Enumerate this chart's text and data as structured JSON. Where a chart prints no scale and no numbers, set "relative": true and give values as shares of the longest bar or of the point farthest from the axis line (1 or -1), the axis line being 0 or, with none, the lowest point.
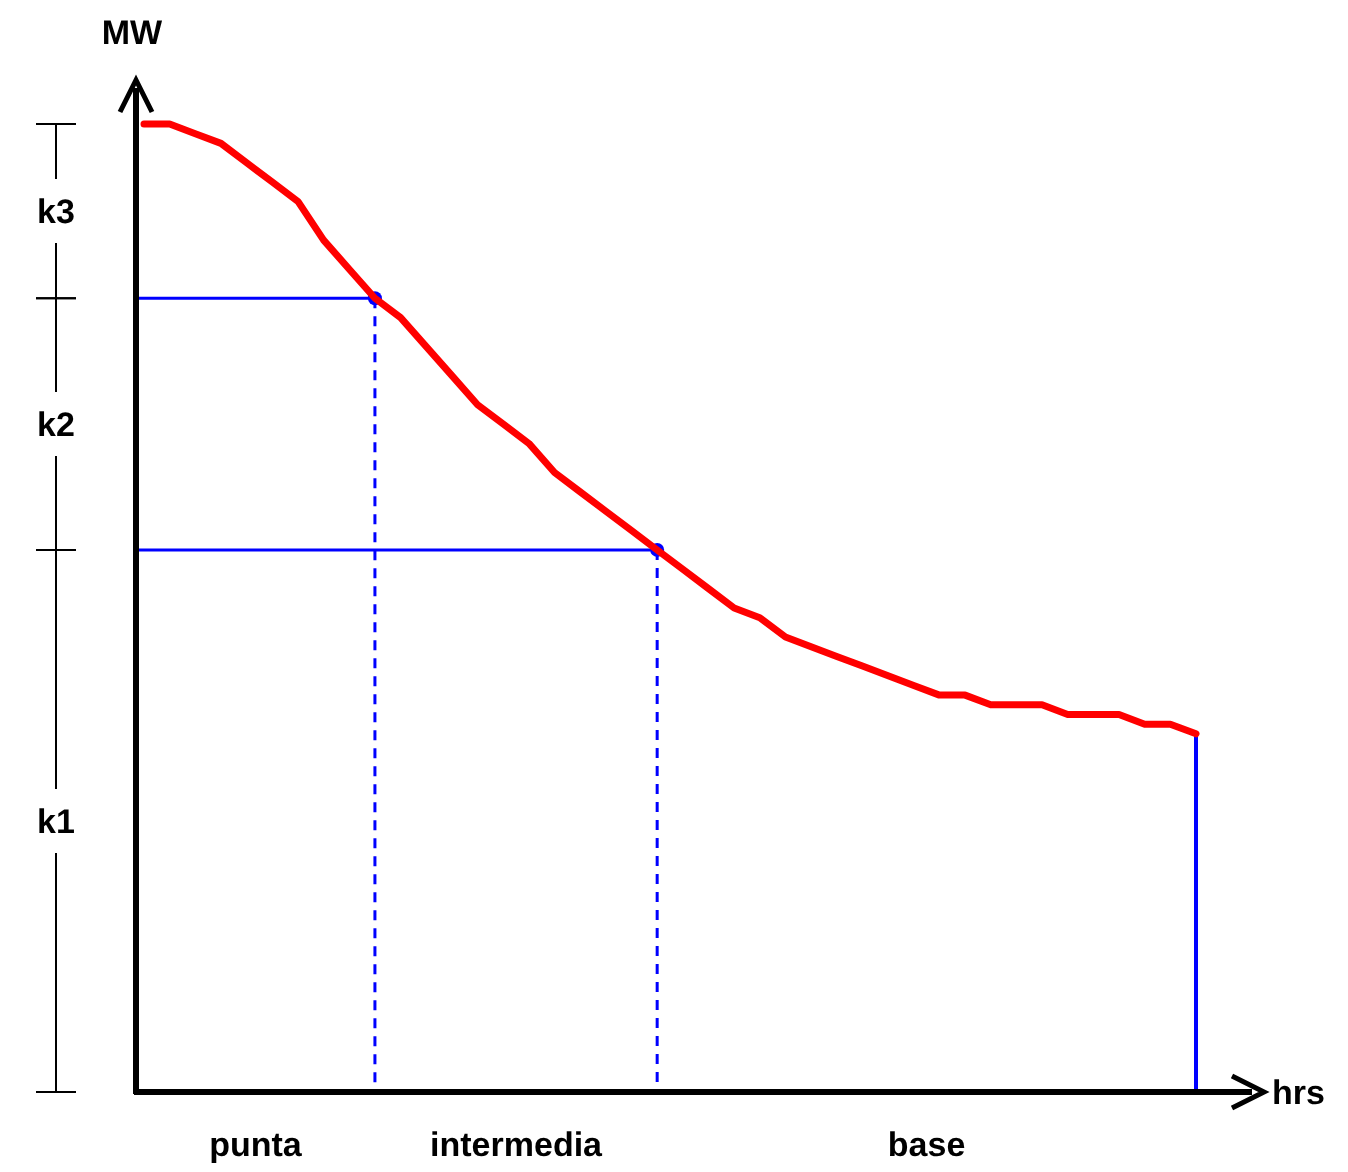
{
  "chart_data": {
    "type": "line",
    "relative": true,
    "xlabel": "hrs",
    "ylabel": "MW",
    "categories": [
      null,
      null,
      null,
      null,
      null,
      null,
      null,
      null,
      null,
      null,
      null,
      null,
      null,
      null,
      null,
      null,
      null,
      null,
      null,
      null,
      null,
      null,
      null,
      null,
      null,
      null,
      null,
      null,
      null,
      null,
      null,
      null,
      null,
      null,
      null,
      null,
      null,
      null,
      null,
      null,
      null,
      null
    ],
    "series": [
      {
        "type": "line",
        "color": "#ff0000",
        "values": [
          1.0,
          1.0,
          0.99,
          0.98,
          0.96,
          0.94,
          0.92,
          0.88,
          0.85,
          0.82,
          0.8,
          0.77,
          0.74,
          0.71,
          0.69,
          0.67,
          0.64,
          0.62,
          0.6,
          0.58,
          0.56,
          0.54,
          0.52,
          0.5,
          0.49,
          0.47,
          0.46,
          0.45,
          0.44,
          0.43,
          0.42,
          0.41,
          0.41,
          0.4,
          0.4,
          0.4,
          0.39,
          0.39,
          0.39,
          0.38,
          0.38,
          0.37
        ]
      }
    ],
    "ref_lines": [
      {
        "axis": "y",
        "value": 0.82,
        "color": "#0000ff"
      },
      {
        "axis": "y",
        "value": 0.56,
        "color": "#0000ff"
      }
    ],
    "annotations": [
      "k3",
      "k2",
      "k1",
      "punta",
      "intermedia",
      "base"
    ]
  }
}
